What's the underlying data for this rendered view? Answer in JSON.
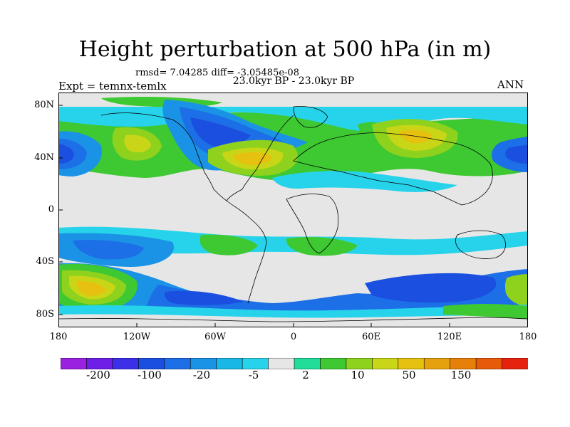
{
  "title": "Height perturbation at 500 hPa (in m)",
  "stats": "rmsd= 7.04285 diff= -3.05485e-08",
  "subtitle": "23.0kyr BP - 23.0kyr BP",
  "experiment": "Expt = temnx-temlx",
  "season": "ANN",
  "map": {
    "lat_labels": [
      "80N",
      "40N",
      "0",
      "40S",
      "80S"
    ],
    "lon_labels": [
      "180",
      "120W",
      "60W",
      "0",
      "60E",
      "120E",
      "180"
    ]
  },
  "colorbar": {
    "labels": [
      "-200",
      "-100",
      "-20",
      "-5",
      "2",
      "10",
      "50",
      "150"
    ],
    "colors": [
      "#9b21e0",
      "#6e1ee6",
      "#3c2fe8",
      "#1a4fe0",
      "#1c6fe6",
      "#1a93e6",
      "#18b7e6",
      "#27d3ea",
      "#e6e6e6",
      "#22dc9a",
      "#3ec832",
      "#8fd21e",
      "#c9d617",
      "#e6c10f",
      "#e6a20c",
      "#e6800a",
      "#e65a0a",
      "#e6220e"
    ]
  },
  "colors": {
    "neutral": "#e6e6e6",
    "coast": "#000000"
  }
}
